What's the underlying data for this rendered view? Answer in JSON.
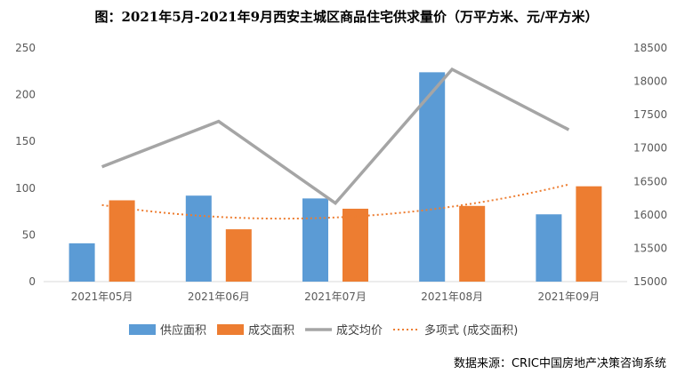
{
  "chart_data": {
    "type": "bar",
    "title": "图：2021年5月-2021年9月西安主城区商品住宅供求量价（万平方米、元/平方米）",
    "categories": [
      "2021年05月",
      "2021年06月",
      "2021年07月",
      "2021年08月",
      "2021年09月"
    ],
    "series": [
      {
        "name": "供应面积",
        "type": "bar",
        "axis": "left",
        "color": "#5B9BD5",
        "values": [
          41,
          92,
          89,
          224,
          72
        ]
      },
      {
        "name": "成交面积",
        "type": "bar",
        "axis": "left",
        "color": "#ED7D31",
        "values": [
          87,
          56,
          78,
          81,
          102
        ]
      },
      {
        "name": "成交均价",
        "type": "line",
        "axis": "right",
        "color": "#A5A5A5",
        "values": [
          16720,
          17400,
          16175,
          18180,
          17275
        ]
      }
    ],
    "trendline": {
      "name": "多项式 (成交面积)",
      "type": "polynomial",
      "order": 2,
      "color": "#ED7D31"
    },
    "y_left": {
      "range": [
        0,
        250
      ],
      "ticks": [
        0,
        50,
        100,
        150,
        200,
        250
      ]
    },
    "y_right": {
      "range": [
        15000,
        18500
      ],
      "ticks": [
        15000,
        15500,
        16000,
        16500,
        17000,
        17500,
        18000,
        18500
      ]
    },
    "grid": false,
    "legend": "bottom"
  },
  "source": "数据来源：CRIC中国房地产决策咨询系统"
}
